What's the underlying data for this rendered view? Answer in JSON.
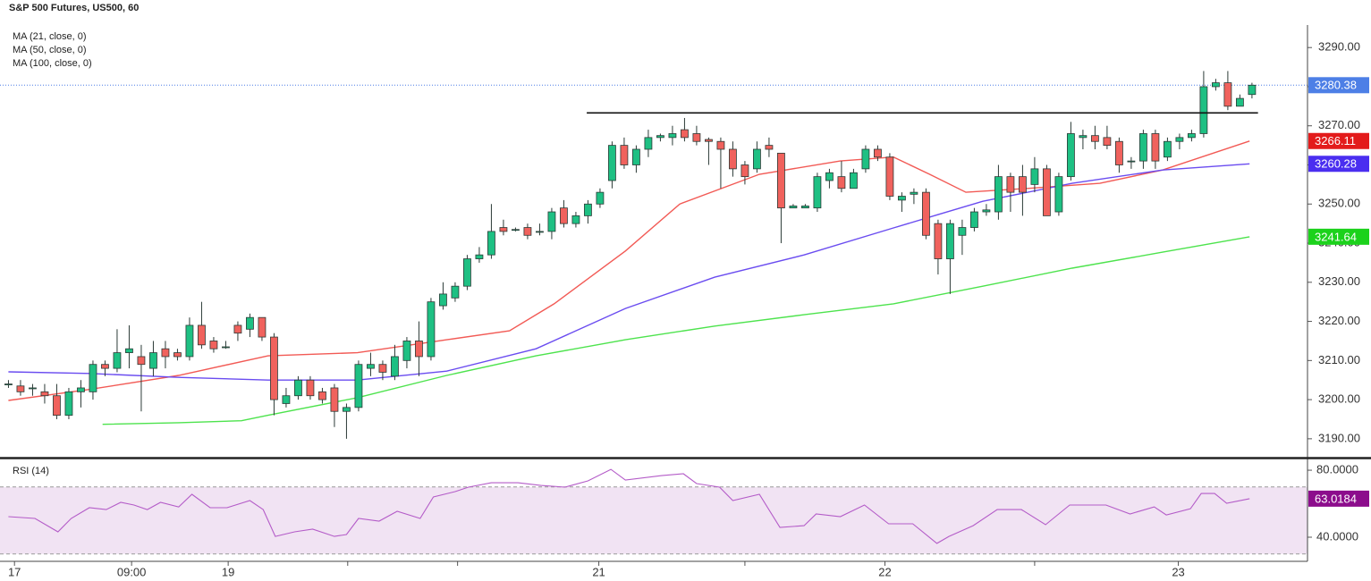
{
  "chart_data": [
    {
      "type": "candlestick",
      "title": "S&P 500 Futures, US500, 60",
      "xlim": [
        -0.7,
        107.6
      ],
      "ylim": [
        3185.4,
        3295.3
      ],
      "yticks": [
        {
          "value": 3190,
          "label": "3190.00"
        },
        {
          "value": 3200,
          "label": "3200.00"
        },
        {
          "value": 3210,
          "label": "3210.00"
        },
        {
          "value": 3220,
          "label": "3220.00"
        },
        {
          "value": 3230,
          "label": "3230.00"
        },
        {
          "value": 3240,
          "label": "3240.00"
        },
        {
          "value": 3250,
          "label": "3250.00"
        },
        {
          "value": 3260,
          "label": "3260.00"
        },
        {
          "value": 3270,
          "label": "3270.00"
        },
        {
          "value": 3280,
          "label": "3280.00"
        },
        {
          "value": 3290,
          "label": "3290.00"
        }
      ],
      "up_color": "#1ec083",
      "down_color": "#f0625d",
      "last_color": "#4d7fe6",
      "open": [
        3204,
        3203.5,
        3203,
        3202,
        3201,
        3196,
        3202,
        3202,
        3209,
        3208,
        3212,
        3211,
        3208,
        3213,
        3212,
        3211,
        3219,
        3215,
        3213.5,
        3219,
        3218,
        3221,
        3216,
        3199,
        3201,
        3205,
        3202,
        3203,
        3197,
        3198,
        3208,
        3209,
        3206,
        3210,
        3215,
        3211,
        3224,
        3226,
        3229,
        3236,
        3237,
        3244,
        3243.5,
        3244,
        3243,
        3243,
        3249,
        3245,
        3247,
        3250,
        3256,
        3265,
        3260,
        3264,
        3267,
        3267,
        3269,
        3268,
        3266.5,
        3266,
        3264,
        3260,
        3259,
        3265,
        3263,
        3249,
        3249,
        3249,
        3256,
        3257,
        3254,
        3259,
        3264,
        3262,
        3251,
        3252.5,
        3253,
        3245,
        3236,
        3242,
        3244,
        3248,
        3248,
        3257,
        3257,
        3255,
        3259,
        3248,
        3257,
        3267,
        3267.5,
        3267,
        3266,
        3261,
        3261,
        3268,
        3262,
        3266,
        3267,
        3268,
        3280,
        3281,
        3275,
        3278
      ],
      "high": [
        3205,
        3205,
        3204,
        3204,
        3204,
        3203,
        3205,
        3210,
        3210,
        3218,
        3219,
        3214,
        3215,
        3215,
        3213,
        3221,
        3225,
        3216,
        3215,
        3220,
        3222,
        3221,
        3217,
        3203,
        3206,
        3206,
        3203,
        3204,
        3199,
        3210,
        3212,
        3210,
        3214,
        3216,
        3220,
        3226,
        3230,
        3230,
        3237,
        3239,
        3250,
        3246,
        3244,
        3245,
        3245,
        3249,
        3251,
        3248,
        3251,
        3254,
        3266,
        3267,
        3265,
        3269,
        3268,
        3270,
        3272,
        3270,
        3267,
        3267,
        3266,
        3261,
        3266,
        3267,
        3263,
        3250,
        3250,
        3258,
        3259,
        3261,
        3259,
        3265,
        3265,
        3263,
        3253,
        3254,
        3254,
        3246,
        3246,
        3246,
        3249,
        3250,
        3260,
        3258,
        3260,
        3262,
        3260,
        3258,
        3271,
        3269,
        3270,
        3270,
        3267,
        3262,
        3269,
        3269,
        3267,
        3268,
        3269,
        3284,
        3282,
        3284,
        3278,
        3281
      ],
      "low": [
        3203,
        3201,
        3201,
        3199,
        3195,
        3195,
        3198,
        3200,
        3206,
        3207,
        3208,
        3197,
        3206,
        3208,
        3210,
        3210,
        3213,
        3212,
        3213,
        3215,
        3216,
        3215,
        3196,
        3198,
        3200,
        3200,
        3199,
        3193,
        3190,
        3197,
        3206,
        3205,
        3205,
        3208,
        3206,
        3210,
        3223,
        3225,
        3228,
        3235,
        3236,
        3242,
        3243,
        3241,
        3242,
        3241,
        3244,
        3244,
        3245,
        3249,
        3254,
        3259,
        3258,
        3262,
        3266,
        3265,
        3266,
        3265,
        3260,
        3254,
        3257,
        3255,
        3258,
        3262,
        3240,
        3249,
        3249,
        3248,
        3254,
        3253,
        3254,
        3258,
        3261,
        3251,
        3248,
        3250,
        3241,
        3232,
        3227,
        3237,
        3243,
        3247,
        3246,
        3248,
        3247,
        3253,
        3247,
        3247,
        3256,
        3264,
        3264,
        3264,
        3258,
        3259,
        3259,
        3259,
        3261,
        3264,
        3266,
        3267,
        3279,
        3274,
        3275,
        3277
      ],
      "close": [
        3204,
        3202,
        3203,
        3201,
        3196,
        3202,
        3203,
        3209,
        3208,
        3212,
        3213,
        3209,
        3212,
        3211,
        3211,
        3219,
        3214,
        3213,
        3213.5,
        3217,
        3221,
        3216,
        3200,
        3201,
        3205,
        3201,
        3200,
        3197,
        3198,
        3209,
        3209,
        3207,
        3211,
        3215,
        3211,
        3225,
        3227,
        3229,
        3236,
        3237,
        3243,
        3243,
        3243.5,
        3242,
        3243,
        3248,
        3245,
        3247,
        3250,
        3253,
        3265,
        3260,
        3264,
        3267,
        3267.5,
        3268,
        3267,
        3266,
        3266,
        3264,
        3259,
        3257,
        3264,
        3264,
        3249,
        3249.5,
        3249.5,
        3257,
        3258,
        3254,
        3258,
        3264,
        3262,
        3252,
        3252,
        3253,
        3242,
        3236,
        3245,
        3244,
        3248,
        3248.5,
        3257,
        3253,
        3253,
        3259,
        3247,
        3257,
        3268,
        3267.5,
        3266,
        3265,
        3260,
        3261,
        3268,
        3261,
        3266,
        3267,
        3268,
        3280,
        3281,
        3275,
        3277,
        3280.38
      ],
      "last_label": "3280.38",
      "series": [
        {
          "name": "MA (21, close, 0)",
          "color": "#f25a55",
          "box_color": "#e31b1b",
          "x": [
            0,
            6.7,
            14.1,
            21.5,
            28.9,
            36.3,
            41.5,
            45.2,
            51.1,
            55.6,
            62.2,
            68.9,
            73.3,
            76.3,
            79.3,
            84.4,
            90.4,
            95.6,
            102.8
          ],
          "values": [
            3199.8,
            3202.6,
            3206.2,
            3211.2,
            3212,
            3215.3,
            3217.6,
            3224.5,
            3238,
            3250,
            3257.6,
            3261,
            3262,
            3257.6,
            3253,
            3254,
            3255.3,
            3258.7,
            3266.11
          ],
          "last_label": "3266.11"
        },
        {
          "name": "MA (50, close, 0)",
          "color": "#6a4cf0",
          "box_color": "#4a2ef0",
          "x": [
            0,
            6.7,
            14.1,
            21.5,
            28.9,
            36.3,
            43.7,
            51.1,
            58.5,
            65.9,
            73.3,
            77,
            80.7,
            88.1,
            95.6,
            102.8
          ],
          "values": [
            3207.1,
            3206.7,
            3205.7,
            3205,
            3205,
            3207.3,
            3213,
            3223.3,
            3231.3,
            3237,
            3243.9,
            3247.3,
            3250.7,
            3255.3,
            3258.7,
            3260.28
          ],
          "last_label": "3260.28"
        },
        {
          "name": "MA (100, close, 0)",
          "color": "#4de34d",
          "box_color": "#1cd21c",
          "x": [
            7.8,
            14.1,
            19.3,
            21.5,
            28.9,
            36.3,
            43.7,
            51.1,
            58.5,
            65.9,
            73.3,
            80.7,
            88.1,
            95.6,
            102.8
          ],
          "values": [
            3193.7,
            3194.1,
            3194.6,
            3196,
            3200.5,
            3206.2,
            3211.2,
            3215.3,
            3218.8,
            3221.7,
            3224.5,
            3229,
            3233.6,
            3237.7,
            3241.64
          ],
          "last_label": "3241.64"
        }
      ],
      "lines": [
        {
          "value": 3273.3,
          "x": [
            47.9,
            103.5
          ],
          "color": "#111111"
        }
      ]
    },
    {
      "type": "line",
      "name": "RSI (14)",
      "color": "#b45cc8",
      "box_color": "#8c0d8c",
      "band_color": "#f1e3f3",
      "xlim": [
        -0.7,
        107.6
      ],
      "ylim": [
        25.6,
        85.9
      ],
      "yticks": [
        {
          "value": 80,
          "label": "80.0000"
        },
        {
          "value": 40,
          "label": "40.0000"
        }
      ],
      "bands": [
        30,
        70
      ],
      "x": [
        0,
        2.2,
        4.1,
        5.2,
        6.7,
        8.1,
        9.3,
        10.4,
        11.5,
        12.6,
        14.1,
        15.2,
        16.7,
        18.1,
        20,
        21.1,
        22.1,
        23.7,
        25.2,
        27,
        28,
        29,
        30.7,
        32.2,
        34.1,
        35.2,
        37,
        38.1,
        40,
        42.2,
        44.1,
        46.1,
        48,
        49.9,
        51.1,
        54.1,
        55.9,
        57,
        58.9,
        60,
        62.2,
        63.9,
        65.9,
        66.9,
        68.9,
        70.9,
        72.9,
        74.9,
        76.9,
        77.9,
        79.9,
        81.9,
        83.9,
        85.9,
        87.9,
        90.9,
        92.9,
        94.9,
        95.9,
        97.9,
        98.8,
        99.9,
        100.9,
        102.8
      ],
      "values": [
        52.3,
        51.2,
        43.2,
        51.2,
        57.6,
        56.5,
        60.8,
        59.2,
        56.5,
        60.8,
        58.1,
        65.6,
        57.6,
        57.6,
        61.9,
        56.5,
        40.5,
        43.2,
        44.8,
        40.5,
        41.6,
        51.2,
        49.6,
        55.5,
        51.2,
        64,
        67.2,
        69.9,
        72.5,
        72.5,
        70.9,
        69.9,
        73.6,
        80.5,
        74.1,
        76.8,
        77.9,
        72,
        69.9,
        61.9,
        65.6,
        45.9,
        46.9,
        53.9,
        52.3,
        59.2,
        48,
        48,
        36.3,
        40.5,
        46.9,
        56.5,
        56.5,
        47.5,
        59.2,
        59.2,
        53.9,
        58.1,
        53.3,
        57,
        66.1,
        66.1,
        60.3,
        63.0184
      ],
      "last_label": "63.0184",
      "xticks": [
        {
          "value": 0.5,
          "label": "17"
        },
        {
          "value": 10.2,
          "label": "09:00"
        },
        {
          "value": 18.2,
          "label": "19"
        },
        {
          "value": 48.9,
          "label": "21"
        },
        {
          "value": 72.6,
          "label": "22"
        },
        {
          "value": 96.9,
          "label": "23"
        }
      ],
      "minor_xticks": [
        28.1,
        37.2,
        61,
        85
      ]
    }
  ]
}
